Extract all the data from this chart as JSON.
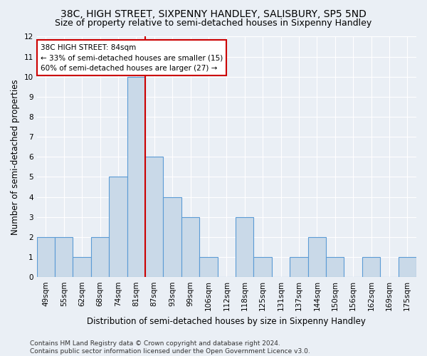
{
  "title": "38C, HIGH STREET, SIXPENNY HANDLEY, SALISBURY, SP5 5ND",
  "subtitle": "Size of property relative to semi-detached houses in Sixpenny Handley",
  "xlabel": "Distribution of semi-detached houses by size in Sixpenny Handley",
  "ylabel": "Number of semi-detached properties",
  "categories": [
    "49sqm",
    "55sqm",
    "62sqm",
    "68sqm",
    "74sqm",
    "81sqm",
    "87sqm",
    "93sqm",
    "99sqm",
    "106sqm",
    "112sqm",
    "118sqm",
    "125sqm",
    "131sqm",
    "137sqm",
    "144sqm",
    "150sqm",
    "156sqm",
    "162sqm",
    "169sqm",
    "175sqm"
  ],
  "values": [
    2,
    2,
    1,
    2,
    5,
    10,
    6,
    4,
    3,
    1,
    0,
    3,
    1,
    0,
    1,
    2,
    1,
    0,
    1,
    0,
    1
  ],
  "bar_color": "#c9d9e8",
  "bar_edge_color": "#5b9bd5",
  "bar_edge_width": 0.8,
  "property_line_x": 5.5,
  "annotation_line1": "38C HIGH STREET: 84sqm",
  "annotation_line2": "← 33% of semi-detached houses are smaller (15)",
  "annotation_line3": "60% of semi-detached houses are larger (27) →",
  "annotation_box_color": "#ffffff",
  "annotation_box_edge_color": "#cc0000",
  "line_color": "#cc0000",
  "ylim": [
    0,
    12
  ],
  "yticks": [
    0,
    1,
    2,
    3,
    4,
    5,
    6,
    7,
    8,
    9,
    10,
    11,
    12
  ],
  "footer": "Contains HM Land Registry data © Crown copyright and database right 2024.\nContains public sector information licensed under the Open Government Licence v3.0.",
  "bg_color": "#eaeff5",
  "plot_bg_color": "#eaeff5",
  "grid_color": "#ffffff",
  "title_fontsize": 10,
  "subtitle_fontsize": 9,
  "xlabel_fontsize": 8.5,
  "ylabel_fontsize": 8.5,
  "tick_fontsize": 7.5,
  "annotation_fontsize": 7.5,
  "footer_fontsize": 6.5
}
